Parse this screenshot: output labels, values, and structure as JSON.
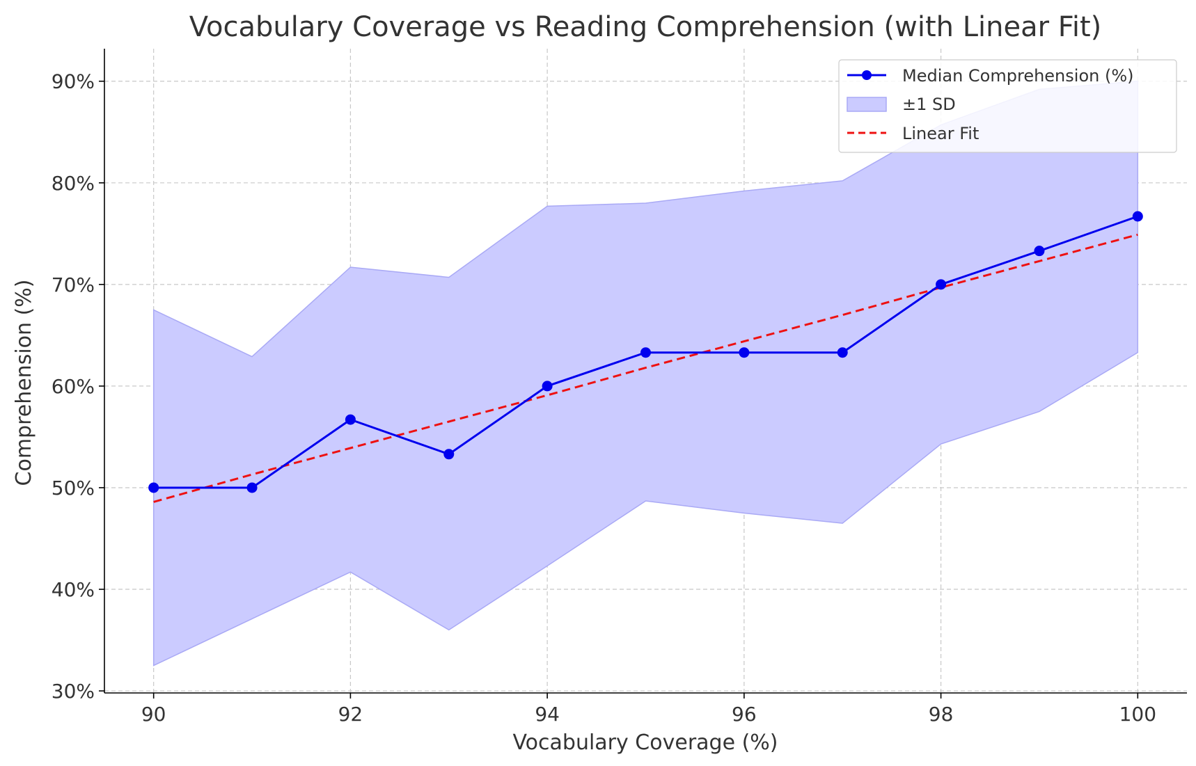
{
  "chart_data": {
    "type": "line",
    "title": "Vocabulary Coverage vs Reading Comprehension (with Linear Fit)",
    "xlabel": "Vocabulary Coverage (%)",
    "ylabel": "Comprehension (%)",
    "xlim": [
      89.5,
      100.5
    ],
    "ylim": [
      29.8,
      93.2
    ],
    "x_ticks": [
      90,
      92,
      94,
      96,
      98,
      100
    ],
    "x_tick_labels": [
      "90",
      "92",
      "94",
      "96",
      "98",
      "100"
    ],
    "y_ticks": [
      30,
      40,
      50,
      60,
      70,
      80,
      90
    ],
    "y_tick_labels": [
      "30%",
      "40%",
      "50%",
      "60%",
      "70%",
      "80%",
      "90%"
    ],
    "grid": true,
    "legend_position": "top-right",
    "x": [
      90,
      91,
      92,
      93,
      94,
      95,
      96,
      97,
      98,
      99,
      100
    ],
    "series": [
      {
        "name": "Median Comprehension (%)",
        "kind": "line-marker",
        "color": "#0000ee",
        "values": [
          50.0,
          50.0,
          56.7,
          53.3,
          60.0,
          63.3,
          63.3,
          63.3,
          70.0,
          73.3,
          76.7
        ]
      },
      {
        "name": "±1 SD",
        "kind": "band",
        "color": "#cbcbff",
        "edge_color": "#a9a9f5",
        "upper": [
          67.5,
          62.9,
          71.7,
          70.7,
          77.7,
          78.0,
          79.2,
          80.2,
          85.7,
          89.2,
          90.0
        ],
        "lower": [
          32.5,
          37.1,
          41.7,
          36.0,
          42.3,
          48.7,
          47.5,
          46.5,
          54.3,
          57.5,
          63.3
        ]
      },
      {
        "name": "Linear Fit",
        "kind": "dashed-line",
        "color": "#ee1111",
        "values": [
          48.6,
          51.3,
          53.9,
          56.5,
          59.1,
          61.8,
          64.4,
          67.0,
          69.7,
          72.3,
          74.9
        ]
      }
    ]
  }
}
